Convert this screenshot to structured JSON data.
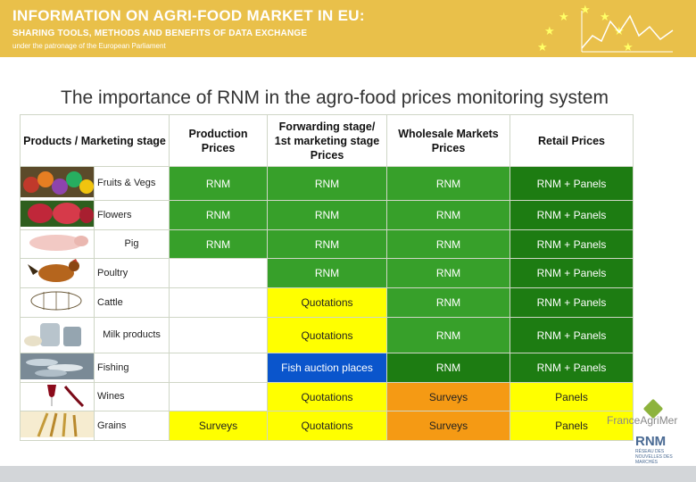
{
  "banner": {
    "line1": "INFORMATION ON AGRI-FOOD MARKET IN EU:",
    "line2": "SHARING TOOLS, METHODS AND BENEFITS OF DATA EXCHANGE",
    "line3": "under the patronage of the European Parliament"
  },
  "title": "The importance of RNM in the agro-food prices monitoring system",
  "table": {
    "headers": [
      "Products / Marketing stage",
      "Production Prices",
      "Forwarding stage/ 1st marketing stage Prices",
      "Wholesale Markets Prices",
      "Retail Prices"
    ],
    "rows": [
      {
        "product": "Fruits & Vegs",
        "photo": "fruits-vegs-photo",
        "production": "RNM",
        "forwarding": "RNM",
        "wholesale": "RNM",
        "retail": "RNM + Panels"
      },
      {
        "product": "Flowers",
        "photo": "flowers-photo",
        "production": "RNM",
        "forwarding": "RNM",
        "wholesale": "RNM",
        "retail": "RNM + Panels"
      },
      {
        "product": "Pig",
        "photo": "pig-photo",
        "production": "RNM",
        "forwarding": "RNM",
        "wholesale": "RNM",
        "retail": "RNM + Panels"
      },
      {
        "product": "Poultry",
        "photo": "poultry-photo",
        "production": "",
        "forwarding": "RNM",
        "wholesale": "RNM",
        "retail": "RNM + Panels"
      },
      {
        "product": "Cattle",
        "photo": "cattle-photo",
        "production": "",
        "forwarding": "Quotations",
        "wholesale": "RNM",
        "retail": "RNM + Panels"
      },
      {
        "product": "Milk products",
        "photo": "milk-products-photo",
        "production": "",
        "forwarding": "Quotations",
        "wholesale": "RNM",
        "retail": "RNM + Panels"
      },
      {
        "product": "Fishing",
        "photo": "fishing-photo",
        "production": "",
        "forwarding": "Fish auction places",
        "wholesale": "RNM",
        "retail": "RNM + Panels"
      },
      {
        "product": "Wines",
        "photo": "wines-photo",
        "production": "",
        "forwarding": "Quotations",
        "wholesale": "Surveys",
        "retail": "Panels"
      },
      {
        "product": "Grains",
        "photo": "grains-photo",
        "production": "Surveys",
        "forwarding": "Quotations",
        "wholesale": "Surveys",
        "retail": "Panels"
      }
    ]
  },
  "colors": {
    "banner": "#e9c04a",
    "rnm_green": "#37a02a",
    "panels_dark_green": "#1d7c12",
    "quotations_yellow": "#ffff00",
    "fish_blue": "#0a55cc",
    "surveys_orange": "#f59a14"
  },
  "logos": {
    "franceagrimer": "FranceAgriMer",
    "rnm": "RNM",
    "rnm_sub": "RÉSEAU DES NOUVELLES DES MARCHÉS"
  }
}
